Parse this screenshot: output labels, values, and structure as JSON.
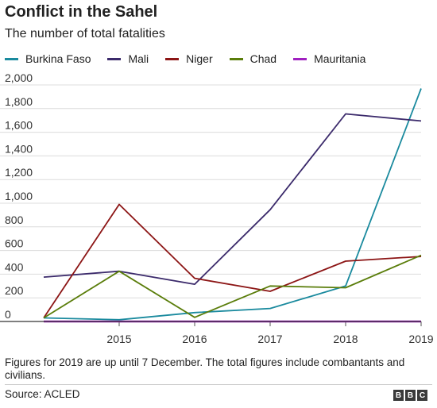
{
  "header": {
    "title": "Conflict in the Sahel",
    "subtitle": "The number of total fatalities"
  },
  "chart_data": {
    "type": "line",
    "title": "Conflict in the Sahel",
    "subtitle": "The number of total fatalities",
    "xlabel": "",
    "ylabel": "",
    "x": [
      2014,
      2015,
      2016,
      2017,
      2018,
      2019
    ],
    "x_tick_labels": [
      "2015",
      "2016",
      "2017",
      "2018",
      "2019"
    ],
    "y_ticks": [
      0,
      200,
      400,
      600,
      800,
      1000,
      1200,
      1400,
      1600,
      1800,
      2000
    ],
    "y_tick_labels": [
      "0",
      "200",
      "400",
      "600",
      "800",
      "1,000",
      "1,200",
      "1,400",
      "1,600",
      "1,800",
      "2,000"
    ],
    "ylim": [
      0,
      2000
    ],
    "grid": true,
    "legend_position": "top",
    "series": [
      {
        "name": "Burkina Faso",
        "color": "#1a8a9e",
        "values": [
          30,
          15,
          75,
          110,
          300,
          1970
        ]
      },
      {
        "name": "Mali",
        "color": "#3b2a6b",
        "values": [
          375,
          425,
          315,
          945,
          1755,
          1695
        ]
      },
      {
        "name": "Niger",
        "color": "#8c1515",
        "values": [
          30,
          990,
          365,
          255,
          510,
          550
        ]
      },
      {
        "name": "Chad",
        "color": "#5a7d0a",
        "values": [
          30,
          425,
          35,
          300,
          285,
          560
        ]
      },
      {
        "name": "Mauritania",
        "color": "#a020c0",
        "values": [
          0,
          0,
          0,
          0,
          0,
          0
        ]
      }
    ]
  },
  "footer": {
    "note": "Figures for 2019 are up until 7 December. The total figures include combantants and civilians.",
    "source": "Source: ACLED",
    "logo_letters": [
      "B",
      "B",
      "C"
    ]
  }
}
